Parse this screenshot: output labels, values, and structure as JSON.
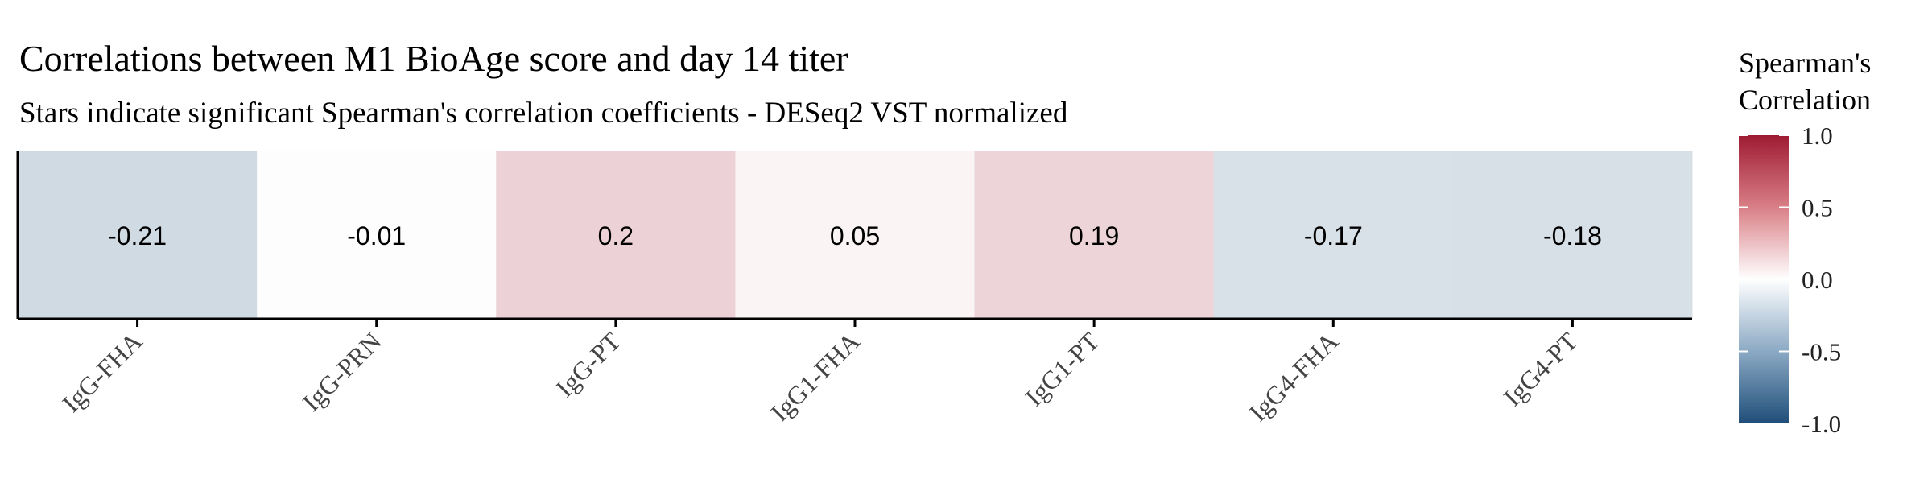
{
  "chart_data": {
    "type": "heatmap",
    "title": "Correlations between M1 BioAge score and day 14 titer",
    "subtitle": "Stars indicate significant Spearman's correlation coefficients - DESeq2 VST normalized",
    "categories": [
      "IgG-FHA",
      "IgG-PRN",
      "IgG-PT",
      "IgG1-FHA",
      "IgG1-PT",
      "IgG4-FHA",
      "IgG4-PT"
    ],
    "values": [
      -0.21,
      -0.01,
      0.2,
      0.05,
      0.19,
      -0.17,
      -0.18
    ],
    "value_labels": [
      "-0.21",
      "-0.01",
      "0.2",
      "0.05",
      "0.19",
      "-0.17",
      "-0.18"
    ],
    "legend": {
      "title_line1": "Spearman's",
      "title_line2": "Correlation",
      "range": [
        -1.0,
        1.0
      ],
      "ticks": [
        1.0,
        0.5,
        0.0,
        -0.5,
        -1.0
      ],
      "tick_labels": [
        "1.0",
        "0.5",
        "0.0",
        "-0.5",
        "-1.0"
      ],
      "placement": "right",
      "colors": {
        "low": "#1f4e79",
        "mid": "#ffffff",
        "high": "#9e1b32"
      }
    }
  }
}
